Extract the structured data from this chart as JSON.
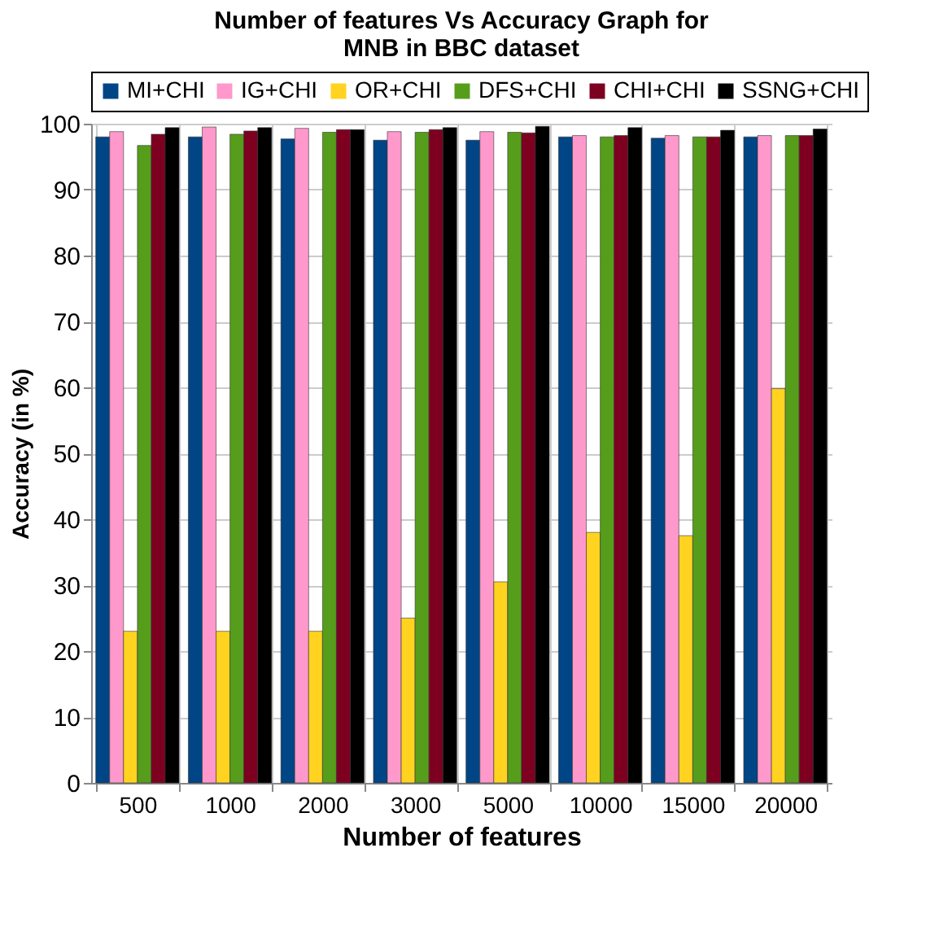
{
  "chart_data": {
    "type": "bar",
    "title": "Number of features Vs Accuracy Graph for MNB in BBC dataset",
    "xlabel": "Number of features",
    "ylabel": "Accuracy (in %)",
    "categories": [
      "500",
      "1000",
      "2000",
      "3000",
      "5000",
      "10000",
      "15000",
      "20000"
    ],
    "series": [
      {
        "name": "MI+CHI",
        "color": "#004586",
        "values": [
          98,
          98,
          97.7,
          97.5,
          97.5,
          98,
          97.8,
          98
        ]
      },
      {
        "name": "IG+CHI",
        "color": "#ff99cc",
        "values": [
          98.8,
          99.5,
          99.3,
          98.8,
          98.8,
          98.2,
          98.2,
          98.2
        ]
      },
      {
        "name": "OR+CHI",
        "color": "#ffd320",
        "values": [
          23,
          23,
          23,
          25,
          30.5,
          38,
          37.5,
          59.8
        ]
      },
      {
        "name": "DFS+CHI",
        "color": "#579d1c",
        "values": [
          96.7,
          98.4,
          98.7,
          98.7,
          98.7,
          98,
          98,
          98.2
        ]
      },
      {
        "name": "CHI+CHI",
        "color": "#7e0021",
        "values": [
          98.4,
          98.9,
          99.1,
          99.1,
          98.6,
          98.2,
          98,
          98.2
        ]
      },
      {
        "name": "SSNG+CHI",
        "color": "#000000",
        "values": [
          99.4,
          99.4,
          99.1,
          99.4,
          99.6,
          99.4,
          99,
          99.2
        ]
      }
    ],
    "ylim": [
      0,
      100
    ],
    "yticks": [
      0,
      10,
      20,
      30,
      40,
      50,
      60,
      70,
      80,
      90,
      100
    ],
    "grid": true,
    "legend": "top"
  }
}
